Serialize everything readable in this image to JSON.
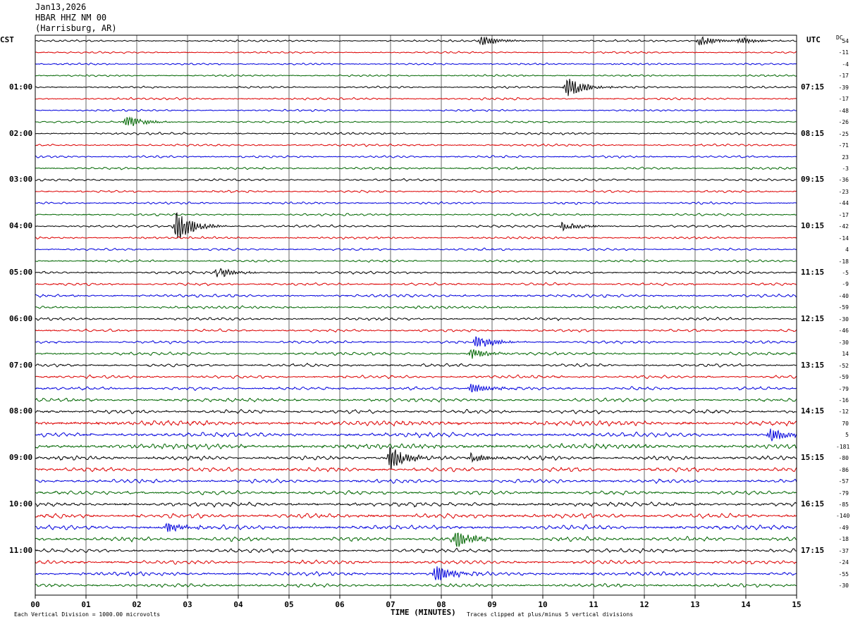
{
  "header": {
    "date": "Jan13,2026",
    "station": "HBAR HHZ NM 00",
    "location": "(Harrisburg, AR)"
  },
  "labels": {
    "left_zone": "CST",
    "right_zone": "UTC",
    "dc_header": "DC",
    "x_axis_title": "TIME (MINUTES)",
    "scale_note": "Each Vertical Division = 1000.00 microvolts",
    "clip_note": "Traces clipped at plus/minus 5 vertical divisions"
  },
  "colors": {
    "trace_cycle": [
      "#000000",
      "#dd0000",
      "#0000dd",
      "#006600"
    ],
    "grid": "#000000",
    "background": "#ffffff"
  },
  "chart_data": {
    "type": "line",
    "title": "HBAR HHZ NM 00 (Harrisburg, AR) Jan13,2026",
    "xlabel": "TIME (MINUTES)",
    "x_ticks": [
      "00",
      "01",
      "02",
      "03",
      "04",
      "05",
      "06",
      "07",
      "08",
      "09",
      "10",
      "11",
      "12",
      "13",
      "14",
      "15"
    ],
    "xlim": [
      0,
      15
    ],
    "trace_count": 48,
    "left_hour_labels": [
      {
        "row": 4,
        "text": "01:00"
      },
      {
        "row": 8,
        "text": "02:00"
      },
      {
        "row": 12,
        "text": "03:00"
      },
      {
        "row": 16,
        "text": "04:00"
      },
      {
        "row": 20,
        "text": "05:00"
      },
      {
        "row": 24,
        "text": "06:00"
      },
      {
        "row": 28,
        "text": "07:00"
      },
      {
        "row": 32,
        "text": "08:00"
      },
      {
        "row": 36,
        "text": "09:00"
      },
      {
        "row": 40,
        "text": "10:00"
      },
      {
        "row": 44,
        "text": "11:00"
      }
    ],
    "right_hour_labels": [
      {
        "row": 4,
        "text": "07:15"
      },
      {
        "row": 8,
        "text": "08:15"
      },
      {
        "row": 12,
        "text": "09:15"
      },
      {
        "row": 16,
        "text": "10:15"
      },
      {
        "row": 20,
        "text": "11:15"
      },
      {
        "row": 24,
        "text": "12:15"
      },
      {
        "row": 28,
        "text": "13:15"
      },
      {
        "row": 32,
        "text": "14:15"
      },
      {
        "row": 36,
        "text": "15:15"
      },
      {
        "row": 40,
        "text": "16:15"
      },
      {
        "row": 44,
        "text": "17:15"
      }
    ],
    "dc_offsets": [
      "54",
      "-11",
      "-4",
      "-17",
      "-39",
      "-17",
      "-48",
      "-26",
      "-25",
      "-71",
      "23",
      "-3",
      "-36",
      "-23",
      "-44",
      "-17",
      "-42",
      "-14",
      "4",
      "-18",
      "-5",
      "-9",
      "-40",
      "-59",
      "-30",
      "-46",
      "-30",
      "14",
      "-52",
      "-59",
      "-79",
      "-16",
      "-12",
      "70",
      "5",
      "-181",
      "-80",
      "-86",
      "-57",
      "-79",
      "-85",
      "-140",
      "-49",
      "-18",
      "-37",
      "-24",
      "-55",
      "-30"
    ],
    "row_noise": [
      0.5,
      0.5,
      0.5,
      0.5,
      0.5,
      0.6,
      0.5,
      0.5,
      0.6,
      0.6,
      0.6,
      0.6,
      0.6,
      0.6,
      0.6,
      0.6,
      0.6,
      0.6,
      0.6,
      0.6,
      0.7,
      0.7,
      0.8,
      0.7,
      0.7,
      0.7,
      0.7,
      0.8,
      0.8,
      0.8,
      0.8,
      0.9,
      1.0,
      1.3,
      1.2,
      1.3,
      1.1,
      1.1,
      1.0,
      1.0,
      1.1,
      1.2,
      1.1,
      1.1,
      1.0,
      1.0,
      1.0,
      0.9
    ],
    "events": [
      {
        "row": 0,
        "minute": 8.8,
        "amp": 3
      },
      {
        "row": 0,
        "minute": 13.1,
        "amp": 3
      },
      {
        "row": 0,
        "minute": 13.9,
        "amp": 2
      },
      {
        "row": 4,
        "minute": 10.5,
        "amp": 6
      },
      {
        "row": 7,
        "minute": 1.8,
        "amp": 4
      },
      {
        "row": 16,
        "minute": 2.8,
        "amp": 9
      },
      {
        "row": 16,
        "minute": 10.4,
        "amp": 3
      },
      {
        "row": 20,
        "minute": 3.6,
        "amp": 3
      },
      {
        "row": 26,
        "minute": 8.7,
        "amp": 4
      },
      {
        "row": 27,
        "minute": 8.6,
        "amp": 3
      },
      {
        "row": 30,
        "minute": 8.6,
        "amp": 3
      },
      {
        "row": 34,
        "minute": 14.5,
        "amp": 4
      },
      {
        "row": 36,
        "minute": 7.0,
        "amp": 7
      },
      {
        "row": 36,
        "minute": 8.6,
        "amp": 3
      },
      {
        "row": 42,
        "minute": 2.6,
        "amp": 3
      },
      {
        "row": 43,
        "minute": 8.3,
        "amp": 5
      },
      {
        "row": 46,
        "minute": 7.9,
        "amp": 5
      }
    ]
  }
}
